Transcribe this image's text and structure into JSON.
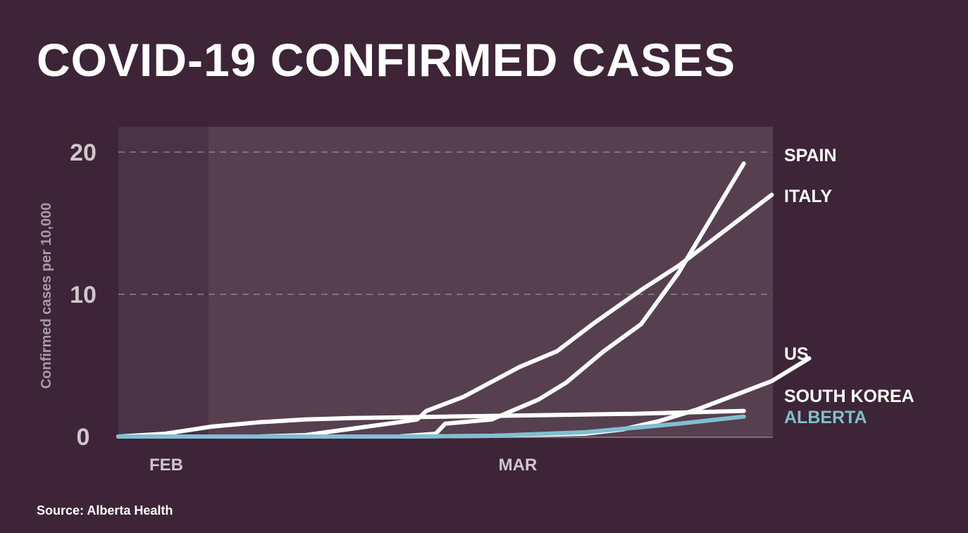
{
  "title": "COVID-19 CONFIRMED CASES",
  "source": "Source: Alberta Health",
  "colors": {
    "background": "#3d2537",
    "plot_light": "#564050",
    "plot_dark": "#4a3345",
    "line": "#ffffff",
    "alberta": "#7fbfcf",
    "gridline": "#8e7f8a"
  },
  "chart_data": {
    "type": "line",
    "title": "COVID-19 CONFIRMED CASES",
    "xlabel": "",
    "ylabel": "Confirmed cases per 10,000",
    "ylim": [
      0,
      21
    ],
    "yticks": [
      0,
      10,
      20
    ],
    "ytick_labels": [
      "0",
      "10",
      "20"
    ],
    "xtick_labels": [
      "FEB",
      "MAR"
    ],
    "grid": true,
    "legend": "labels at line ends (right)",
    "series": [
      {
        "name": "SPAIN",
        "color": "#ffffff",
        "points": [
          [
            0,
            0
          ],
          [
            10,
            0
          ],
          [
            20,
            0
          ],
          [
            30,
            0
          ],
          [
            34,
            0.2
          ],
          [
            35,
            0.9
          ],
          [
            40,
            1.2
          ],
          [
            45,
            2.6
          ],
          [
            48,
            3.8
          ],
          [
            52,
            6.0
          ],
          [
            56,
            7.9
          ],
          [
            60,
            11.5
          ],
          [
            63,
            14.8
          ],
          [
            67,
            19.2
          ]
        ]
      },
      {
        "name": "ITALY",
        "color": "#ffffff",
        "points": [
          [
            0,
            0
          ],
          [
            15,
            0
          ],
          [
            20,
            0.1
          ],
          [
            30,
            1.0
          ],
          [
            32,
            1.2
          ],
          [
            33,
            1.8
          ],
          [
            37,
            2.8
          ],
          [
            43,
            4.9
          ],
          [
            47,
            6.0
          ],
          [
            51,
            8.0
          ],
          [
            56,
            10.3
          ],
          [
            60,
            12.0
          ],
          [
            64,
            14.0
          ],
          [
            67,
            15.5
          ],
          [
            70,
            17.0
          ]
        ]
      },
      {
        "name": "US",
        "color": "#ffffff",
        "points": [
          [
            0,
            0
          ],
          [
            30,
            0
          ],
          [
            40,
            0.05
          ],
          [
            50,
            0.2
          ],
          [
            54,
            0.5
          ],
          [
            58,
            1.1
          ],
          [
            62,
            1.9
          ],
          [
            66,
            2.9
          ],
          [
            70,
            3.9
          ],
          [
            74,
            5.5
          ]
        ]
      },
      {
        "name": "SOUTH KOREA",
        "color": "#ffffff",
        "points": [
          [
            0,
            0
          ],
          [
            5,
            0.2
          ],
          [
            10,
            0.7
          ],
          [
            15,
            1.0
          ],
          [
            20,
            1.2
          ],
          [
            25,
            1.3
          ],
          [
            35,
            1.4
          ],
          [
            45,
            1.5
          ],
          [
            55,
            1.6
          ],
          [
            67,
            1.8
          ]
        ]
      },
      {
        "name": "ALBERTA",
        "color": "#7fbfcf",
        "points": [
          [
            0,
            0
          ],
          [
            30,
            0
          ],
          [
            40,
            0.05
          ],
          [
            50,
            0.3
          ],
          [
            55,
            0.6
          ],
          [
            60,
            0.9
          ],
          [
            67,
            1.4
          ]
        ]
      }
    ]
  }
}
